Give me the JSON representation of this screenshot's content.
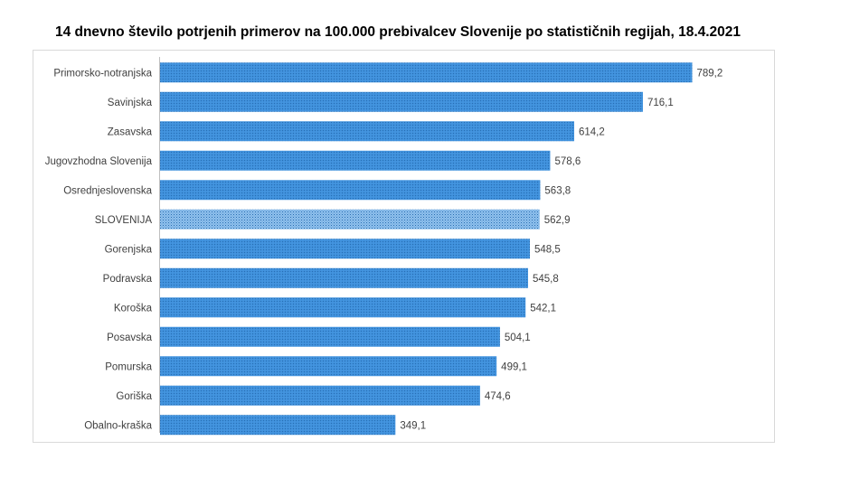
{
  "title": "14 dnevno število potrjenih primerov na 100.000 prebivalcev Slovenije po statističnih regijah, 18.4.2021",
  "colors": {
    "bar": "#3d8fdb",
    "bar_pattern": "#2a6fb3",
    "slovenia_bar": "#7fb3e6",
    "axis": "#bfbfbf",
    "text": "#404040"
  },
  "chart_data": {
    "type": "bar",
    "orientation": "horizontal",
    "categories": [
      "Primorsko-notranjska",
      "Savinjska",
      "Zasavska",
      "Jugovzhodna Slovenija",
      "Osrednjeslovenska",
      "SLOVENIJA",
      "Gorenjska",
      "Podravska",
      "Koroška",
      "Posavska",
      "Pomurska",
      "Goriška",
      "Obalno-kraška"
    ],
    "values": [
      789.2,
      716.1,
      614.2,
      578.6,
      563.8,
      562.9,
      548.5,
      545.8,
      542.1,
      504.1,
      499.1,
      474.6,
      349.1
    ],
    "value_labels": [
      "789,2",
      "716,1",
      "614,2",
      "578,6",
      "563,8",
      "562,9",
      "548,5",
      "545,8",
      "542,1",
      "504,1",
      "499,1",
      "474,6",
      "349,1"
    ],
    "highlight": "SLOVENIJA",
    "xlim": [
      0,
      800
    ],
    "grid": false,
    "legend": "none"
  }
}
